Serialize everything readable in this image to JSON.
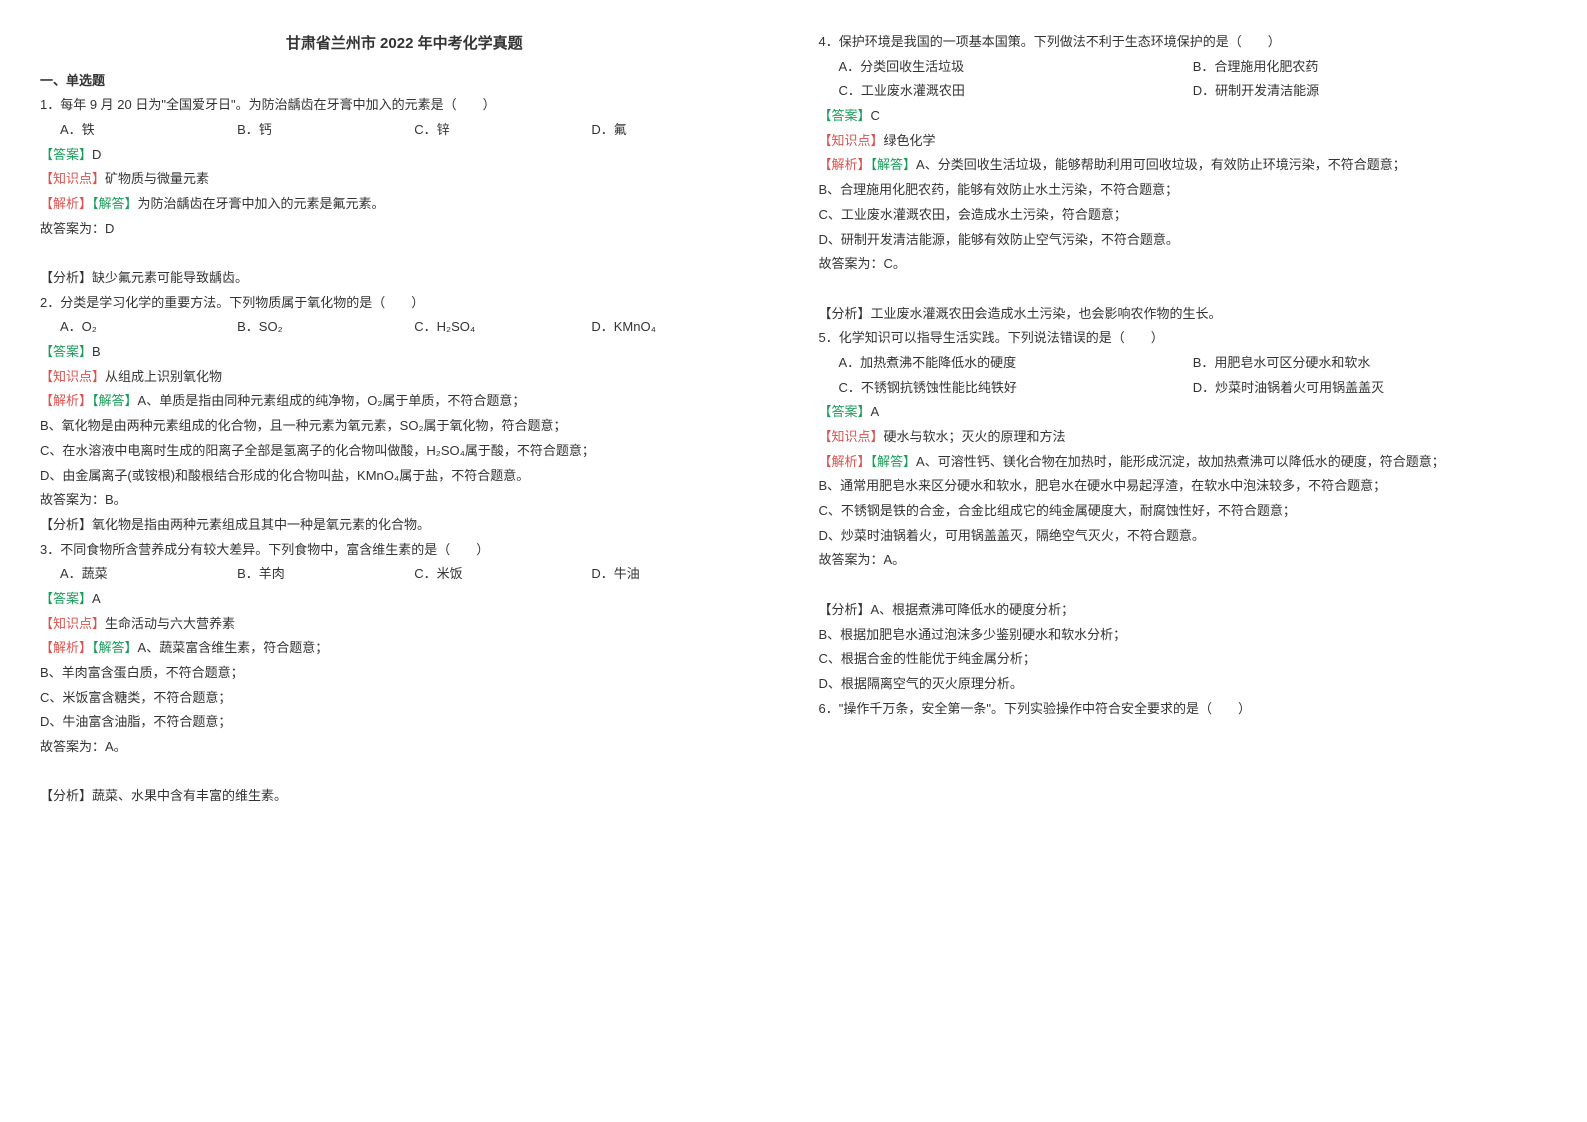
{
  "title": "甘肃省兰州市 2022 年中考化学真题",
  "section1": "一、单选题",
  "q1": {
    "stem": "1．每年 9 月 20 日为\"全国爱牙日\"。为防治龋齿在牙膏中加入的元素是（　　）",
    "optA": "A．铁",
    "optB": "B．钙",
    "optC": "C．锌",
    "optD": "D．氟",
    "answerLabel": "【答案】",
    "answer": "D",
    "knowledgeLabel": "【知识点】",
    "knowledge": "矿物质与微量元素",
    "analysisLabel": "【解析】",
    "analysisSub": "【解答】",
    "analysisText": "为防治龋齿在牙膏中加入的元素是氟元素。",
    "conclude": "故答案为：D",
    "fenxiLabel": "【分析】",
    "fenxi": "缺少氟元素可能导致龋齿。"
  },
  "q2": {
    "stem": "2．分类是学习化学的重要方法。下列物质属于氧化物的是（　　）",
    "optA": "A．O₂",
    "optB": "B．SO₂",
    "optC": "C．H₂SO₄",
    "optD": "D．KMnO₄",
    "answerLabel": "【答案】",
    "answer": "B",
    "knowledgeLabel": "【知识点】",
    "knowledge": "从组成上识别氧化物",
    "analysisLabel": "【解析】",
    "analysisSub": "【解答】",
    "lineA": "A、单质是指由同种元素组成的纯净物，O₂属于单质，不符合题意；",
    "lineB": "B、氧化物是由两种元素组成的化合物，且一种元素为氧元素，SO₂属于氧化物，符合题意；",
    "lineC": "C、在水溶液中电离时生成的阳离子全部是氢离子的化合物叫做酸，H₂SO₄属于酸，不符合题意；",
    "lineD": "D、由金属离子(或铵根)和酸根结合形成的化合物叫盐，KMnO₄属于盐，不符合题意。",
    "conclude": "故答案为：B。",
    "fenxiLabel": "【分析】",
    "fenxi": "氧化物是指由两种元素组成且其中一种是氧元素的化合物。"
  },
  "q3": {
    "stem": "3．不同食物所含营养成分有较大差异。下列食物中，富含维生素的是（　　）",
    "optA": "A．蔬菜",
    "optB": "B．羊肉",
    "optC": "C．米饭",
    "optD": "D．牛油",
    "answerLabel": "【答案】",
    "answer": "A",
    "knowledgeLabel": "【知识点】",
    "knowledge": "生命活动与六大营养素",
    "analysisLabel": "【解析】",
    "analysisSub": "【解答】",
    "lineA": "A、蔬菜富含维生素，符合题意；",
    "lineB": "B、羊肉富含蛋白质，不符合题意；",
    "lineC": "C、米饭富含糖类，不符合题意；",
    "lineD": "D、牛油富含油脂，不符合题意；",
    "conclude": "故答案为：A。",
    "fenxiLabel": "【分析】",
    "fenxi": "蔬菜、水果中含有丰富的维生素。"
  },
  "q4": {
    "stem": "4．保护环境是我国的一项基本国策。下列做法不利于生态环境保护的是（　　）",
    "optA": "A．分类回收生活垃圾",
    "optB": "B．合理施用化肥农药",
    "optC": "C．工业废水灌溉农田",
    "optD": "D．研制开发清洁能源",
    "answerLabel": "【答案】",
    "answer": "C",
    "knowledgeLabel": "【知识点】",
    "knowledge": "绿色化学",
    "analysisLabel": "【解析】",
    "analysisSub": "【解答】",
    "lineA": "A、分类回收生活垃圾，能够帮助利用可回收垃圾，有效防止环境污染，不符合题意；",
    "lineB": "B、合理施用化肥农药，能够有效防止水土污染，不符合题意；",
    "lineC": "C、工业废水灌溉农田，会造成水土污染，符合题意；",
    "lineD": "D、研制开发清洁能源，能够有效防止空气污染，不符合题意。",
    "conclude": "故答案为：C。",
    "fenxiLabel": "【分析】",
    "fenxi": "工业废水灌溉农田会造成水土污染，也会影响农作物的生长。"
  },
  "q5": {
    "stem": "5．化学知识可以指导生活实践。下列说法错误的是（　　）",
    "optA": "A．加热煮沸不能降低水的硬度",
    "optB": "B．用肥皂水可区分硬水和软水",
    "optC": "C．不锈钢抗锈蚀性能比纯铁好",
    "optD": "D．炒菜时油锅着火可用锅盖盖灭",
    "answerLabel": "【答案】",
    "answer": "A",
    "knowledgeLabel": "【知识点】",
    "knowledge": "硬水与软水；灭火的原理和方法",
    "analysisLabel": "【解析】",
    "analysisSub": "【解答】",
    "lineA": "A、可溶性钙、镁化合物在加热时，能形成沉淀，故加热煮沸可以降低水的硬度，符合题意；",
    "lineB": "B、通常用肥皂水来区分硬水和软水，肥皂水在硬水中易起浮渣，在软水中泡沫较多，不符合题意；",
    "lineC": "C、不锈钢是铁的合金，合金比组成它的纯金属硬度大，耐腐蚀性好，不符合题意；",
    "lineD": "D、炒菜时油锅着火，可用锅盖盖灭，隔绝空气灭火，不符合题意。",
    "conclude": "故答案为：A。",
    "fenxiLabel": "【分析】",
    "fenxiA": "A、根据煮沸可降低水的硬度分析；",
    "fenxiB": "B、根据加肥皂水通过泡沫多少鉴别硬水和软水分析；",
    "fenxiC": "C、根据合金的性能优于纯金属分析；",
    "fenxiD": "D、根据隔离空气的灭火原理分析。"
  },
  "q6": {
    "stem": "6．\"操作千万条，安全第一条\"。下列实验操作中符合安全要求的是（　　）"
  }
}
